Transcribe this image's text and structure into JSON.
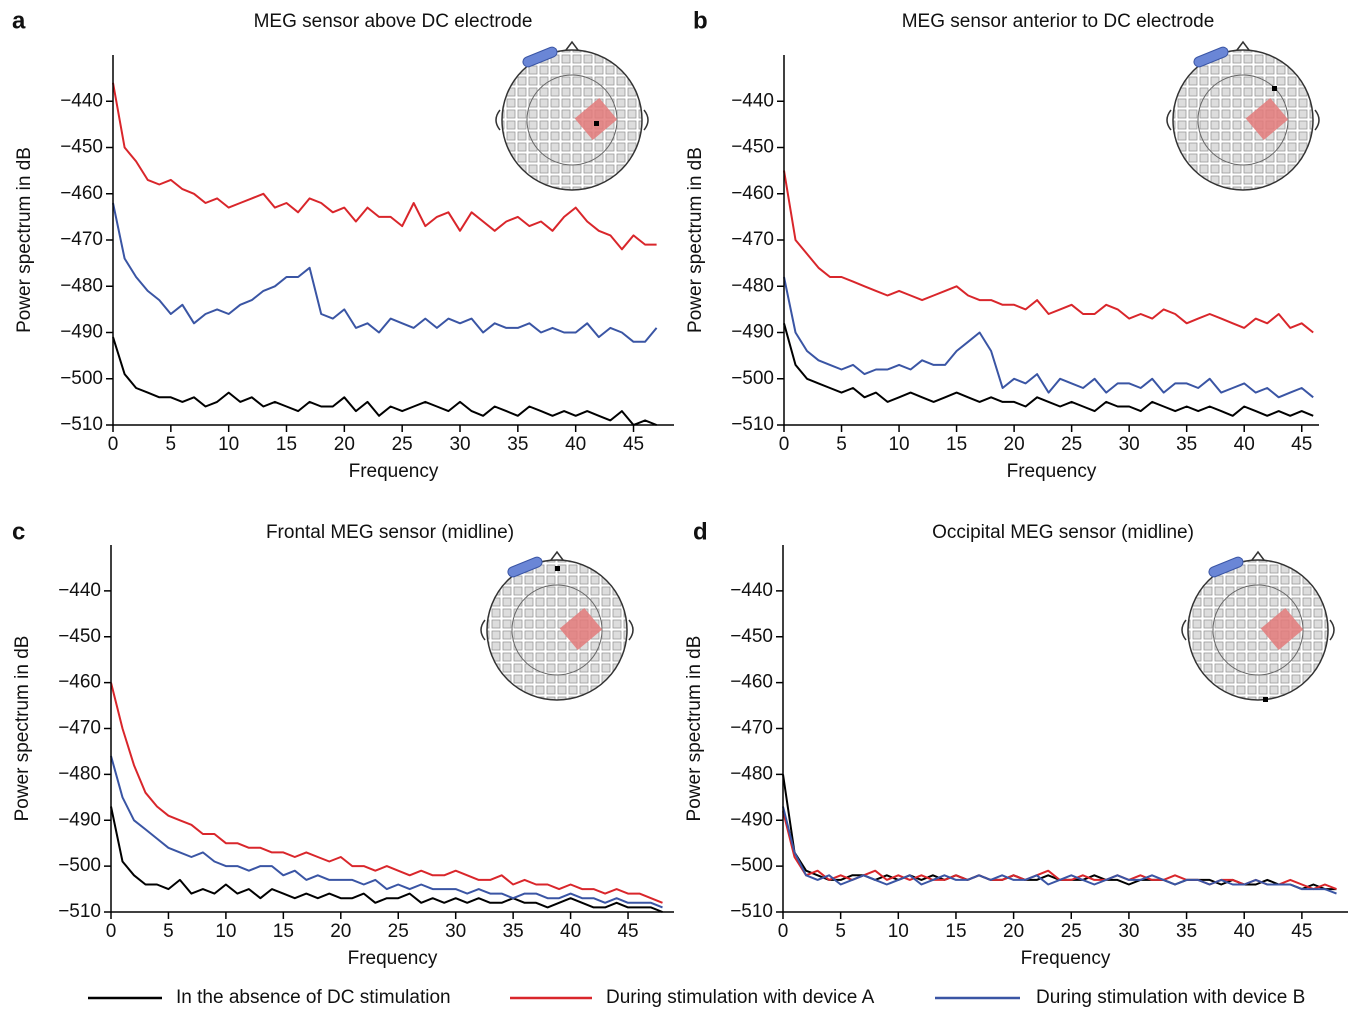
{
  "chart_data": [
    {
      "type": "line",
      "label": "a",
      "title": "MEG sensor above DC electrode",
      "x_label": "Frequency",
      "y_label": "Power spectrum in dB",
      "xlim": [
        0,
        48.5
      ],
      "ylim": [
        -510,
        -430
      ],
      "xticks": [
        0,
        5,
        10,
        15,
        20,
        25,
        30,
        35,
        40,
        45
      ],
      "yticks": [
        {
          "value": -510,
          "label": "−510"
        },
        {
          "value": -500,
          "label": "−500"
        },
        {
          "value": -490,
          "label": "−490"
        },
        {
          "value": -480,
          "label": "−480"
        },
        {
          "value": -470,
          "label": "−470"
        },
        {
          "value": -460,
          "label": "−460"
        },
        {
          "value": -450,
          "label": "−450"
        },
        {
          "value": -440,
          "label": "−440"
        }
      ],
      "x": [
        0,
        1,
        2,
        3,
        4,
        5,
        6,
        7,
        8,
        9,
        10,
        11,
        12,
        13,
        14,
        15,
        16,
        17,
        18,
        19,
        20,
        21,
        22,
        23,
        24,
        25,
        26,
        27,
        28,
        29,
        30,
        31,
        32,
        33,
        34,
        35,
        36,
        37,
        38,
        39,
        40,
        41,
        42,
        43,
        44,
        45,
        46,
        47
      ],
      "series": [
        {
          "name": "In the absence of DC stimulation",
          "color": "#000000",
          "values": [
            -491,
            -499,
            -502,
            -503,
            -504,
            -504,
            -505,
            -504,
            -506,
            -505,
            -503,
            -505,
            -504,
            -506,
            -505,
            -506,
            -507,
            -505,
            -506,
            -506,
            -504,
            -507,
            -505,
            -508,
            -506,
            -507,
            -506,
            -505,
            -506,
            -507,
            -505,
            -507,
            -508,
            -506,
            -507,
            -508,
            -506,
            -507,
            -508,
            -507,
            -508,
            -507,
            -508,
            -509,
            -507,
            -510,
            -509,
            -510
          ]
        },
        {
          "name": "During stimulation with device A",
          "color": "#d9262b",
          "values": [
            -436,
            -450,
            -453,
            -457,
            -458,
            -457,
            -459,
            -460,
            -462,
            -461,
            -463,
            -462,
            -461,
            -460,
            -463,
            -462,
            -464,
            -461,
            -462,
            -464,
            -463,
            -466,
            -463,
            -465,
            -465,
            -467,
            -462,
            -467,
            -465,
            -464,
            -468,
            -464,
            -466,
            -468,
            -466,
            -465,
            -467,
            -466,
            -468,
            -465,
            -463,
            -466,
            -468,
            -469,
            -472,
            -469,
            -471,
            -471
          ]
        },
        {
          "name": "During stimulation with device B",
          "color": "#3a55a4",
          "values": [
            -462,
            -474,
            -478,
            -481,
            -483,
            -486,
            -484,
            -488,
            -486,
            -485,
            -486,
            -484,
            -483,
            -481,
            -480,
            -478,
            -478,
            -476,
            -486,
            -487,
            -485,
            -489,
            -488,
            -490,
            -487,
            -488,
            -489,
            -487,
            -489,
            -487,
            -488,
            -487,
            -490,
            -488,
            -489,
            -489,
            -488,
            -490,
            -489,
            -490,
            -490,
            -488,
            -491,
            -489,
            -490,
            -492,
            -492,
            -489
          ]
        }
      ]
    },
    {
      "type": "line",
      "label": "b",
      "title": "MEG sensor anterior to DC electrode",
      "x_label": "Frequency",
      "y_label": "Power spectrum in dB",
      "xlim": [
        0,
        46.5
      ],
      "ylim": [
        -510,
        -430
      ],
      "xticks": [
        0,
        5,
        10,
        15,
        20,
        25,
        30,
        35,
        40,
        45
      ],
      "yticks": [
        {
          "value": -510,
          "label": "−510"
        },
        {
          "value": -500,
          "label": "−500"
        },
        {
          "value": -490,
          "label": "−490"
        },
        {
          "value": -480,
          "label": "−480"
        },
        {
          "value": -470,
          "label": "−470"
        },
        {
          "value": -460,
          "label": "−460"
        },
        {
          "value": -450,
          "label": "−450"
        },
        {
          "value": -440,
          "label": "−440"
        }
      ],
      "x": [
        0,
        1,
        2,
        3,
        4,
        5,
        6,
        7,
        8,
        9,
        10,
        11,
        12,
        13,
        14,
        15,
        16,
        17,
        18,
        19,
        20,
        21,
        22,
        23,
        24,
        25,
        26,
        27,
        28,
        29,
        30,
        31,
        32,
        33,
        34,
        35,
        36,
        37,
        38,
        39,
        40,
        41,
        42,
        43,
        44,
        45,
        46
      ],
      "series": [
        {
          "name": "In the absence of DC stimulation",
          "color": "#000000",
          "values": [
            -488,
            -497,
            -500,
            -501,
            -502,
            -503,
            -502,
            -504,
            -503,
            -505,
            -504,
            -503,
            -504,
            -505,
            -504,
            -503,
            -504,
            -505,
            -504,
            -505,
            -505,
            -506,
            -504,
            -505,
            -506,
            -505,
            -506,
            -507,
            -505,
            -506,
            -506,
            -507,
            -505,
            -506,
            -507,
            -506,
            -507,
            -506,
            -507,
            -508,
            -506,
            -507,
            -508,
            -507,
            -508,
            -507,
            -508
          ]
        },
        {
          "name": "During stimulation with device A",
          "color": "#d9262b",
          "values": [
            -455,
            -470,
            -473,
            -476,
            -478,
            -478,
            -479,
            -480,
            -481,
            -482,
            -481,
            -482,
            -483,
            -482,
            -481,
            -480,
            -482,
            -483,
            -483,
            -484,
            -484,
            -485,
            -483,
            -486,
            -485,
            -484,
            -486,
            -486,
            -484,
            -485,
            -487,
            -486,
            -487,
            -485,
            -486,
            -488,
            -487,
            -486,
            -487,
            -488,
            -489,
            -487,
            -488,
            -486,
            -489,
            -488,
            -490
          ]
        },
        {
          "name": "During stimulation with device B",
          "color": "#3a55a4",
          "values": [
            -478,
            -490,
            -494,
            -496,
            -497,
            -498,
            -497,
            -499,
            -498,
            -498,
            -497,
            -498,
            -496,
            -497,
            -497,
            -494,
            -492,
            -490,
            -494,
            -502,
            -500,
            -501,
            -499,
            -503,
            -500,
            -501,
            -502,
            -500,
            -503,
            -501,
            -501,
            -502,
            -500,
            -503,
            -501,
            -501,
            -502,
            -500,
            -503,
            -502,
            -501,
            -503,
            -502,
            -504,
            -503,
            -502,
            -504
          ]
        }
      ]
    },
    {
      "type": "line",
      "label": "c",
      "title": "Frontal MEG sensor (midline)",
      "x_label": "Frequency",
      "y_label": "Power spectrum in dB",
      "xlim": [
        0,
        49
      ],
      "ylim": [
        -510,
        -430
      ],
      "xticks": [
        0,
        5,
        10,
        15,
        20,
        25,
        30,
        35,
        40,
        45
      ],
      "yticks": [
        {
          "value": -510,
          "label": "−510"
        },
        {
          "value": -500,
          "label": "−500"
        },
        {
          "value": -490,
          "label": "−490"
        },
        {
          "value": -480,
          "label": "−480"
        },
        {
          "value": -470,
          "label": "−470"
        },
        {
          "value": -460,
          "label": "−460"
        },
        {
          "value": -450,
          "label": "−450"
        },
        {
          "value": -440,
          "label": "−440"
        }
      ],
      "x": [
        0,
        1,
        2,
        3,
        4,
        5,
        6,
        7,
        8,
        9,
        10,
        11,
        12,
        13,
        14,
        15,
        16,
        17,
        18,
        19,
        20,
        21,
        22,
        23,
        24,
        25,
        26,
        27,
        28,
        29,
        30,
        31,
        32,
        33,
        34,
        35,
        36,
        37,
        38,
        39,
        40,
        41,
        42,
        43,
        44,
        45,
        46,
        47,
        48
      ],
      "series": [
        {
          "name": "In the absence of DC stimulation",
          "color": "#000000",
          "values": [
            -487,
            -499,
            -502,
            -504,
            -504,
            -505,
            -503,
            -506,
            -505,
            -506,
            -504,
            -506,
            -505,
            -507,
            -505,
            -506,
            -507,
            -506,
            -507,
            -506,
            -507,
            -507,
            -506,
            -508,
            -507,
            -507,
            -506,
            -508,
            -507,
            -508,
            -507,
            -508,
            -507,
            -508,
            -508,
            -507,
            -508,
            -508,
            -509,
            -508,
            -507,
            -508,
            -509,
            -509,
            -508,
            -509,
            -509,
            -509,
            -510
          ]
        },
        {
          "name": "During stimulation with device A",
          "color": "#d9262b",
          "values": [
            -460,
            -470,
            -478,
            -484,
            -487,
            -489,
            -490,
            -491,
            -493,
            -493,
            -495,
            -495,
            -496,
            -496,
            -497,
            -497,
            -498,
            -497,
            -498,
            -499,
            -498,
            -500,
            -500,
            -501,
            -500,
            -501,
            -502,
            -501,
            -502,
            -502,
            -501,
            -502,
            -503,
            -503,
            -502,
            -504,
            -503,
            -504,
            -504,
            -505,
            -504,
            -505,
            -505,
            -506,
            -505,
            -506,
            -506,
            -507,
            -508
          ]
        },
        {
          "name": "During stimulation with device B",
          "color": "#3a55a4",
          "values": [
            -476,
            -485,
            -490,
            -492,
            -494,
            -496,
            -497,
            -498,
            -497,
            -499,
            -500,
            -500,
            -501,
            -500,
            -500,
            -502,
            -501,
            -503,
            -502,
            -503,
            -503,
            -503,
            -504,
            -503,
            -505,
            -504,
            -505,
            -504,
            -505,
            -505,
            -505,
            -506,
            -505,
            -506,
            -506,
            -507,
            -506,
            -506,
            -507,
            -507,
            -506,
            -507,
            -507,
            -508,
            -507,
            -508,
            -508,
            -508,
            -509
          ]
        }
      ]
    },
    {
      "type": "line",
      "label": "d",
      "title": "Occipital MEG sensor (midline)",
      "x_label": "Frequency",
      "y_label": "Power spectrum in dB",
      "xlim": [
        0,
        49
      ],
      "ylim": [
        -510,
        -430
      ],
      "xticks": [
        0,
        5,
        10,
        15,
        20,
        25,
        30,
        35,
        40,
        45
      ],
      "yticks": [
        {
          "value": -510,
          "label": "−510"
        },
        {
          "value": -500,
          "label": "−500"
        },
        {
          "value": -490,
          "label": "−490"
        },
        {
          "value": -480,
          "label": "−480"
        },
        {
          "value": -470,
          "label": "−470"
        },
        {
          "value": -460,
          "label": "−460"
        },
        {
          "value": -450,
          "label": "−450"
        },
        {
          "value": -440,
          "label": "−440"
        }
      ],
      "x": [
        0,
        1,
        2,
        3,
        4,
        5,
        6,
        7,
        8,
        9,
        10,
        11,
        12,
        13,
        14,
        15,
        16,
        17,
        18,
        19,
        20,
        21,
        22,
        23,
        24,
        25,
        26,
        27,
        28,
        29,
        30,
        31,
        32,
        33,
        34,
        35,
        36,
        37,
        38,
        39,
        40,
        41,
        42,
        43,
        44,
        45,
        46,
        47,
        48
      ],
      "series": [
        {
          "name": "In the absence of DC stimulation",
          "color": "#000000",
          "values": [
            -480,
            -497,
            -501,
            -502,
            -503,
            -503,
            -502,
            -502,
            -503,
            -502,
            -503,
            -502,
            -503,
            -502,
            -503,
            -502,
            -503,
            -502,
            -503,
            -503,
            -502,
            -503,
            -503,
            -502,
            -503,
            -503,
            -503,
            -502,
            -503,
            -503,
            -504,
            -503,
            -503,
            -503,
            -504,
            -503,
            -503,
            -503,
            -504,
            -503,
            -504,
            -504,
            -503,
            -504,
            -504,
            -505,
            -504,
            -505,
            -505
          ]
        },
        {
          "name": "During stimulation with device A",
          "color": "#d9262b",
          "values": [
            -488,
            -498,
            -502,
            -501,
            -503,
            -502,
            -503,
            -502,
            -501,
            -503,
            -502,
            -503,
            -502,
            -503,
            -503,
            -502,
            -503,
            -502,
            -503,
            -503,
            -502,
            -503,
            -502,
            -501,
            -503,
            -503,
            -502,
            -503,
            -503,
            -502,
            -503,
            -502,
            -503,
            -503,
            -502,
            -503,
            -503,
            -504,
            -503,
            -503,
            -504,
            -503,
            -504,
            -504,
            -503,
            -504,
            -505,
            -504,
            -505
          ]
        },
        {
          "name": "During stimulation with device B",
          "color": "#3a55a4",
          "values": [
            -487,
            -497,
            -502,
            -503,
            -502,
            -504,
            -503,
            -502,
            -503,
            -504,
            -503,
            -502,
            -504,
            -503,
            -502,
            -503,
            -503,
            -502,
            -503,
            -502,
            -503,
            -503,
            -502,
            -504,
            -503,
            -502,
            -503,
            -504,
            -503,
            -502,
            -503,
            -503,
            -502,
            -503,
            -504,
            -503,
            -503,
            -504,
            -503,
            -504,
            -504,
            -503,
            -504,
            -504,
            -504,
            -505,
            -505,
            -505,
            -506
          ]
        }
      ]
    }
  ]
}
